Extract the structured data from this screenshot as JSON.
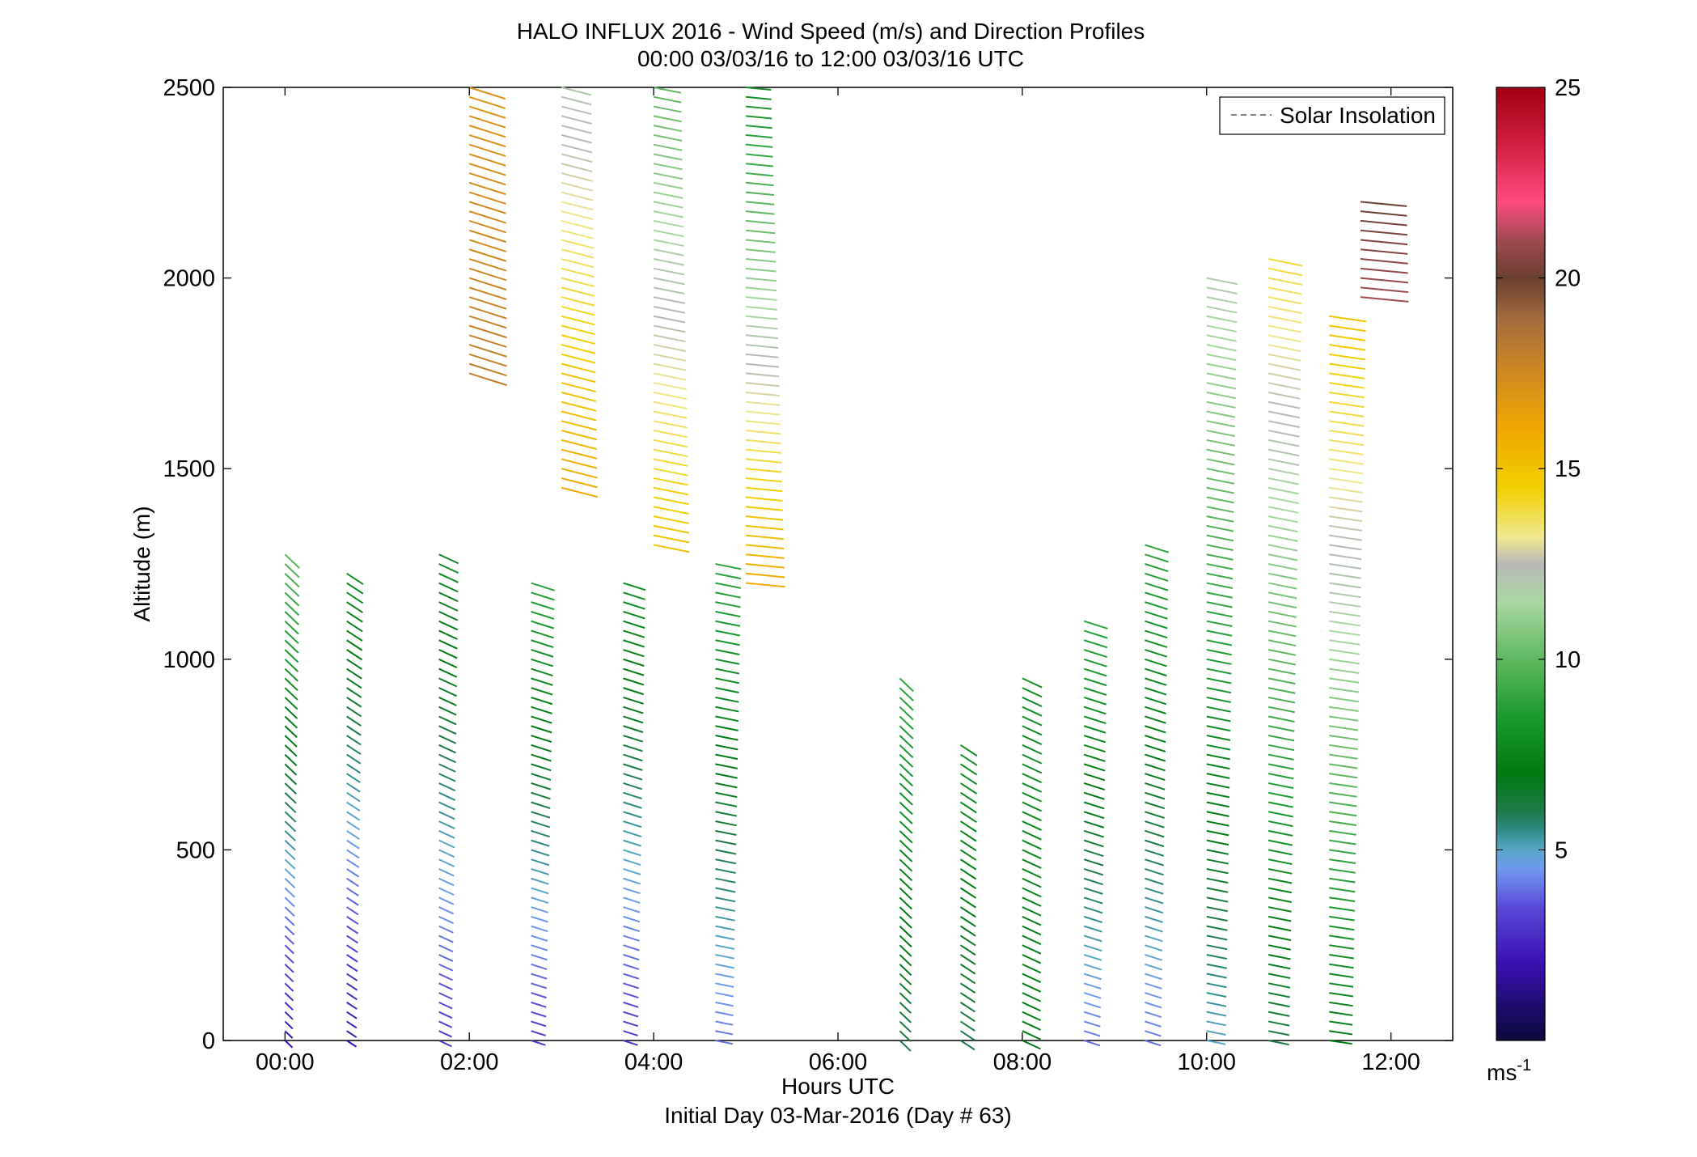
{
  "chart_data": {
    "type": "wind-barb-profile",
    "title": "HALO INFLUX 2016 - Wind Speed (m/s) and Direction Profiles",
    "subtitle": "00:00 03/03/16 to 12:00 03/03/16  UTC",
    "xlabel": "Hours UTC",
    "xlabel2": "Initial Day 03-Mar-2016 (Day # 63)",
    "ylabel": "Altitude (m)",
    "xlim": [
      -0.67,
      12.67
    ],
    "ylim": [
      0,
      2500
    ],
    "x_ticks": [
      {
        "value": 0,
        "label": "00:00"
      },
      {
        "value": 2,
        "label": "02:00"
      },
      {
        "value": 4,
        "label": "04:00"
      },
      {
        "value": 6,
        "label": "06:00"
      },
      {
        "value": 8,
        "label": "08:00"
      },
      {
        "value": 10,
        "label": "10:00"
      },
      {
        "value": 12,
        "label": "12:00"
      }
    ],
    "y_ticks": [
      {
        "value": 0,
        "label": "0"
      },
      {
        "value": 500,
        "label": "500"
      },
      {
        "value": 1000,
        "label": "1000"
      },
      {
        "value": 1500,
        "label": "1500"
      },
      {
        "value": 2000,
        "label": "2000"
      },
      {
        "value": 2500,
        "label": "2500"
      }
    ],
    "legend": {
      "position": "top-right",
      "entries": [
        {
          "label": "Solar Insolation",
          "style": "dashed",
          "color": "#808080"
        }
      ]
    },
    "colorbar": {
      "range": [
        0,
        25
      ],
      "ticks": [
        {
          "value": 5,
          "label": "5"
        },
        {
          "value": 10,
          "label": "10"
        },
        {
          "value": 15,
          "label": "15"
        },
        {
          "value": 20,
          "label": "20"
        },
        {
          "value": 25,
          "label": "25"
        }
      ],
      "unit_base": "ms",
      "unit_exp": "-1",
      "stops": [
        {
          "v": 0,
          "c": "#0a0a3a"
        },
        {
          "v": 2,
          "c": "#3a0fb0"
        },
        {
          "v": 3.5,
          "c": "#5a4ad8"
        },
        {
          "v": 4.5,
          "c": "#6f9af0"
        },
        {
          "v": 5,
          "c": "#5aa8c8"
        },
        {
          "v": 5.5,
          "c": "#2f8a8a"
        },
        {
          "v": 6,
          "c": "#1f7a4a"
        },
        {
          "v": 7,
          "c": "#007a10"
        },
        {
          "v": 8.5,
          "c": "#1a9a30"
        },
        {
          "v": 10,
          "c": "#60b860"
        },
        {
          "v": 11.5,
          "c": "#a8d8a0"
        },
        {
          "v": 12.5,
          "c": "#b8b8b8"
        },
        {
          "v": 13.2,
          "c": "#f0e890"
        },
        {
          "v": 14.5,
          "c": "#f0d000"
        },
        {
          "v": 16,
          "c": "#f0a800"
        },
        {
          "v": 17.5,
          "c": "#d08a20"
        },
        {
          "v": 19,
          "c": "#a06a40"
        },
        {
          "v": 20,
          "c": "#6a4030"
        },
        {
          "v": 21,
          "c": "#a04a50"
        },
        {
          "v": 22,
          "c": "#ff4a80"
        },
        {
          "v": 23.5,
          "c": "#d02040"
        },
        {
          "v": 25,
          "c": "#a00010"
        }
      ]
    },
    "wind_note": "direction in degrees (meteorological, from), speed in m/s",
    "profiles": [
      {
        "t": 0.0,
        "ranges": [
          [
            0,
            0,
            1290,
            330,
            10,
            2
          ]
        ]
      },
      {
        "t": 0.67,
        "ranges": [
          [
            0,
            0,
            1230,
            320,
            8,
            2
          ]
        ]
      },
      {
        "t": 1.67,
        "ranges": [
          [
            0,
            0,
            1280,
            310,
            8,
            3
          ]
        ]
      },
      {
        "t": 2.67,
        "ranges": [
          [
            0,
            0,
            1220,
            300,
            9,
            3
          ]
        ]
      },
      {
        "t": 3.67,
        "ranges": [
          [
            0,
            0,
            1200,
            300,
            8,
            3
          ]
        ]
      },
      {
        "t": 4.67,
        "ranges": [
          [
            0,
            0,
            1250,
            290,
            9,
            4
          ]
        ]
      },
      {
        "t": 2.0,
        "ranges": [
          [
            0,
            1750,
            2500,
            300,
            17,
            18
          ]
        ]
      },
      {
        "t": 3.0,
        "ranges": [
          [
            0,
            1450,
            2500,
            295,
            12,
            16
          ]
        ]
      },
      {
        "t": 4.0,
        "ranges": [
          [
            0,
            1300,
            2500,
            290,
            10,
            15
          ]
        ]
      },
      {
        "t": 5.0,
        "ranges": [
          [
            0,
            1200,
            2500,
            280,
            8,
            16
          ]
        ]
      },
      {
        "t": 6.67,
        "ranges": [
          [
            0,
            0,
            950,
            330,
            9,
            6
          ]
        ]
      },
      {
        "t": 7.33,
        "ranges": [
          [
            0,
            0,
            780,
            320,
            8,
            6
          ]
        ]
      },
      {
        "t": 8.0,
        "ranges": [
          [
            0,
            0,
            950,
            310,
            8,
            7
          ]
        ]
      },
      {
        "t": 8.67,
        "ranges": [
          [
            0,
            0,
            1120,
            300,
            9,
            4
          ]
        ]
      },
      {
        "t": 9.33,
        "ranges": [
          [
            0,
            0,
            1300,
            300,
            9,
            4
          ]
        ]
      },
      {
        "t": 10.0,
        "ranges": [
          [
            0,
            0,
            2000,
            290,
            12,
            5
          ]
        ]
      },
      {
        "t": 10.67,
        "ranges": [
          [
            0,
            0,
            2050,
            290,
            14,
            6
          ]
        ]
      },
      {
        "t": 11.33,
        "ranges": [
          [
            0,
            0,
            1900,
            285,
            15,
            7
          ]
        ]
      },
      {
        "t": 11.67,
        "ranges": [
          [
            0,
            1950,
            2200,
            280,
            20,
            21
          ]
        ]
      }
    ]
  }
}
